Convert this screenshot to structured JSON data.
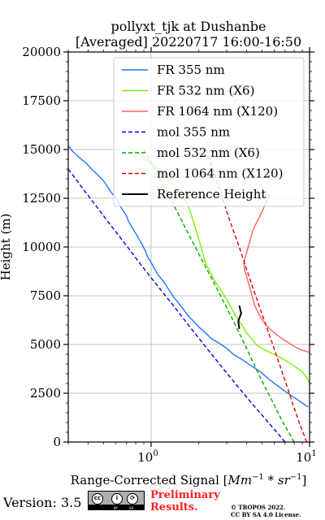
{
  "chart_data": {
    "type": "line",
    "title": [
      "pollyxt_tjk at Dushanbe",
      "[Averaged] 20220717 16:00-16:50"
    ],
    "xlabel_prefix": "Range-Corrected Signal [",
    "xlabel_math": "Mm",
    "xlabel_exp1": "−1",
    "xlabel_mid": " * sr",
    "xlabel_exp2": "−1",
    "xlabel_suffix": "]",
    "ylabel": "Height (m)",
    "xscale": "log",
    "xlim": [
      0.3,
      10
    ],
    "ylim": [
      0,
      20000
    ],
    "grid": true,
    "legend_placement": "top-right",
    "yticks": [
      0,
      2500,
      5000,
      7500,
      10000,
      12500,
      15000,
      17500,
      20000
    ],
    "ytick_labels": [
      "0",
      "2500",
      "5000",
      "7500",
      "10000",
      "12500",
      "15000",
      "17500",
      "20000"
    ],
    "xticks": [
      1,
      10
    ],
    "xtick_base": "10",
    "xtick_exps": [
      "0",
      "1"
    ],
    "series": [
      {
        "name": "FR 355 nm",
        "color": "#1f77ff",
        "style": "solid",
        "points": [
          [
            9.8,
            1800
          ],
          [
            9.0,
            2000
          ],
          [
            8.3,
            2200
          ],
          [
            7.6,
            2400
          ],
          [
            7.0,
            2600
          ],
          [
            6.5,
            2800
          ],
          [
            6.0,
            3000
          ],
          [
            5.4,
            3300
          ],
          [
            4.9,
            3600
          ],
          [
            4.3,
            3900
          ],
          [
            3.8,
            4200
          ],
          [
            3.3,
            4500
          ],
          [
            3.0,
            4800
          ],
          [
            2.65,
            5100
          ],
          [
            2.4,
            5300
          ],
          [
            2.2,
            5600
          ],
          [
            2.0,
            5900
          ],
          [
            1.85,
            6200
          ],
          [
            1.7,
            6500
          ],
          [
            1.6,
            6800
          ],
          [
            1.5,
            7100
          ],
          [
            1.4,
            7400
          ],
          [
            1.32,
            7700
          ],
          [
            1.25,
            8000
          ],
          [
            1.18,
            8300
          ],
          [
            1.1,
            8600
          ],
          [
            1.05,
            8900
          ],
          [
            1.0,
            9200
          ],
          [
            0.95,
            9500
          ],
          [
            0.92,
            9800
          ],
          [
            0.88,
            10100
          ],
          [
            0.84,
            10400
          ],
          [
            0.8,
            10700
          ],
          [
            0.76,
            11000
          ],
          [
            0.72,
            11300
          ],
          [
            0.7,
            11600
          ],
          [
            0.66,
            11900
          ],
          [
            0.63,
            12200
          ],
          [
            0.6,
            12500
          ],
          [
            0.56,
            12800
          ],
          [
            0.53,
            13100
          ],
          [
            0.5,
            13400
          ],
          [
            0.46,
            13700
          ],
          [
            0.42,
            14000
          ],
          [
            0.39,
            14300
          ],
          [
            0.35,
            14600
          ],
          [
            0.32,
            14900
          ],
          [
            0.3,
            15200
          ]
        ]
      },
      {
        "name": "FR 532 nm (X6)",
        "color": "#7cf000",
        "style": "solid",
        "points": [
          [
            10,
            3000
          ],
          [
            9.6,
            3300
          ],
          [
            9.0,
            3600
          ],
          [
            8.0,
            3900
          ],
          [
            7.0,
            4200
          ],
          [
            6.3,
            4400
          ],
          [
            5.6,
            4600
          ],
          [
            5.0,
            4800
          ],
          [
            4.6,
            5000
          ],
          [
            4.3,
            5300
          ],
          [
            4.0,
            5600
          ],
          [
            3.8,
            5900
          ],
          [
            3.6,
            6200
          ],
          [
            3.4,
            6500
          ],
          [
            3.25,
            6800
          ],
          [
            3.1,
            7100
          ],
          [
            2.95,
            7400
          ],
          [
            2.8,
            7700
          ],
          [
            2.65,
            8000
          ],
          [
            2.5,
            8300
          ],
          [
            2.4,
            8600
          ],
          [
            2.3,
            8900
          ],
          [
            2.2,
            9200
          ],
          [
            2.15,
            9500
          ],
          [
            2.1,
            9800
          ],
          [
            2.05,
            10100
          ],
          [
            2.0,
            10400
          ],
          [
            1.95,
            10700
          ],
          [
            1.9,
            11000
          ],
          [
            1.85,
            11300
          ],
          [
            1.8,
            11600
          ],
          [
            1.75,
            11900
          ],
          [
            1.7,
            12200
          ],
          [
            1.6,
            12500
          ],
          [
            1.5,
            12800
          ],
          [
            1.4,
            13100
          ],
          [
            1.3,
            13400
          ],
          [
            1.2,
            13700
          ],
          [
            1.1,
            14000
          ],
          [
            1.0,
            14300
          ],
          [
            0.9,
            14600
          ],
          [
            0.8,
            14900
          ],
          [
            0.7,
            15200
          ]
        ]
      },
      {
        "name": "FR 1064 nm (X120)",
        "color": "#ff6060",
        "style": "solid",
        "points": [
          [
            10,
            4600
          ],
          [
            9.0,
            4700
          ],
          [
            8.0,
            4900
          ],
          [
            7.0,
            5200
          ],
          [
            6.2,
            5500
          ],
          [
            5.6,
            5800
          ],
          [
            5.2,
            6100
          ],
          [
            4.9,
            6400
          ],
          [
            4.7,
            6700
          ],
          [
            4.5,
            7000
          ],
          [
            4.4,
            7300
          ],
          [
            4.3,
            7600
          ],
          [
            4.2,
            7900
          ],
          [
            4.1,
            8200
          ],
          [
            4.0,
            8500
          ],
          [
            3.9,
            8800
          ],
          [
            3.85,
            9100
          ],
          [
            3.9,
            9400
          ],
          [
            4.0,
            9700
          ],
          [
            4.1,
            10000
          ],
          [
            4.2,
            10300
          ],
          [
            4.3,
            10600
          ],
          [
            4.4,
            10900
          ],
          [
            4.6,
            11200
          ],
          [
            4.8,
            11500
          ],
          [
            5.0,
            11800
          ],
          [
            5.2,
            12100
          ],
          [
            5.4,
            12400
          ],
          [
            5.6,
            12700
          ]
        ]
      },
      {
        "name": "mol 355 nm",
        "color": "#0000dd",
        "style": "dashed",
        "points": [
          [
            7.0,
            0
          ],
          [
            5.5,
            1000
          ],
          [
            4.3,
            2000
          ],
          [
            3.4,
            3000
          ],
          [
            2.7,
            4000
          ],
          [
            2.15,
            5000
          ],
          [
            1.72,
            6000
          ],
          [
            1.38,
            7000
          ],
          [
            1.1,
            8000
          ],
          [
            0.88,
            9000
          ],
          [
            0.71,
            10000
          ],
          [
            0.57,
            11000
          ],
          [
            0.46,
            12000
          ],
          [
            0.37,
            13000
          ],
          [
            0.3,
            14000
          ]
        ]
      },
      {
        "name": "mol 532 nm (X6)",
        "color": "#00aa00",
        "style": "dashed",
        "points": [
          [
            8.0,
            0
          ],
          [
            6.8,
            1000
          ],
          [
            5.9,
            2000
          ],
          [
            5.1,
            3000
          ],
          [
            4.45,
            4000
          ],
          [
            3.9,
            5000
          ],
          [
            3.4,
            6000
          ],
          [
            2.95,
            7000
          ],
          [
            2.55,
            8000
          ],
          [
            2.2,
            9000
          ],
          [
            1.9,
            10000
          ],
          [
            1.64,
            11000
          ],
          [
            1.42,
            12000
          ],
          [
            1.22,
            13000
          ],
          [
            1.05,
            14000
          ],
          [
            0.9,
            15000
          ]
        ]
      },
      {
        "name": "mol 1064 nm (X120)",
        "color": "#dd0000",
        "style": "dashed",
        "points": [
          [
            9.6,
            0
          ],
          [
            8.6,
            1000
          ],
          [
            7.8,
            2000
          ],
          [
            7.1,
            3000
          ],
          [
            6.45,
            4000
          ],
          [
            5.85,
            5000
          ],
          [
            5.3,
            6000
          ],
          [
            4.8,
            7000
          ],
          [
            4.35,
            8000
          ],
          [
            3.95,
            9000
          ],
          [
            3.6,
            10000
          ],
          [
            3.25,
            11000
          ],
          [
            2.95,
            12000
          ],
          [
            2.7,
            13000
          ],
          [
            2.45,
            14000
          ],
          [
            2.2,
            15000
          ]
        ]
      },
      {
        "name": "Reference Height",
        "color": "#000000",
        "style": "solid",
        "width": 2,
        "points": [
          [
            3.6,
            5800
          ],
          [
            3.55,
            6200
          ],
          [
            3.7,
            6600
          ],
          [
            3.6,
            7000
          ]
        ]
      }
    ]
  },
  "footer": {
    "version": "Version: 3.5",
    "cc_by": "BY",
    "cc_sa": "SA",
    "preliminary_line1": "Preliminary",
    "preliminary_line2": "Results.",
    "copyright_line1": "© TROPOS 2022.",
    "copyright_line2": "CC BY SA 4.0 License."
  }
}
